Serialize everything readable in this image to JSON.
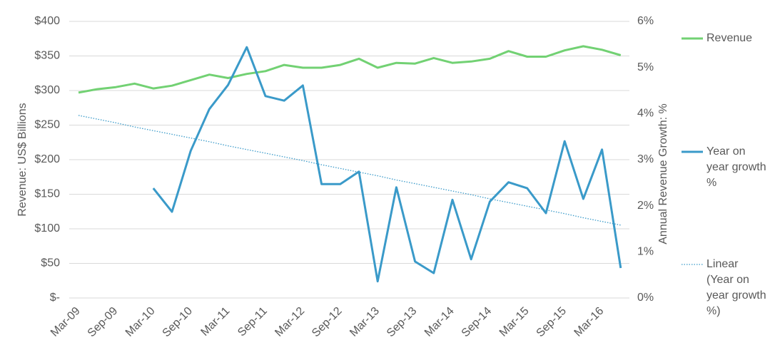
{
  "chart_data": {
    "type": "line",
    "categories": [
      "Mar-09",
      null,
      "Sep-09",
      null,
      "Mar-10",
      null,
      "Sep-10",
      null,
      "Mar-11",
      null,
      "Sep-11",
      null,
      "Mar-12",
      null,
      "Sep-12",
      null,
      "Mar-13",
      null,
      "Sep-13",
      null,
      "Mar-14",
      null,
      "Sep-14",
      null,
      "Mar-15",
      null,
      "Sep-15",
      null,
      "Mar-16",
      null
    ],
    "y_label": "Revenue: US$ Billions",
    "y2_label": "Annual Revenue Growth: %",
    "ylim": [
      0,
      400
    ],
    "yticks": [
      {
        "value": 0,
        "label": "$-"
      },
      {
        "value": 50,
        "label": "$50"
      },
      {
        "value": 100,
        "label": "$100"
      },
      {
        "value": 150,
        "label": "$150"
      },
      {
        "value": 200,
        "label": "$200"
      },
      {
        "value": 250,
        "label": "$250"
      },
      {
        "value": 300,
        "label": "$300"
      },
      {
        "value": 350,
        "label": "$350"
      },
      {
        "value": 400,
        "label": "$400"
      }
    ],
    "y2lim": [
      0,
      6
    ],
    "y2ticks": [
      {
        "value": 0,
        "label": "0%"
      },
      {
        "value": 1,
        "label": "1%"
      },
      {
        "value": 2,
        "label": "2%"
      },
      {
        "value": 3,
        "label": "3%"
      },
      {
        "value": 4,
        "label": "4%"
      },
      {
        "value": 5,
        "label": "5%"
      },
      {
        "value": 6,
        "label": "6%"
      }
    ],
    "grid": true,
    "legend": "right",
    "series": [
      {
        "name": "Revenue",
        "color": "#72d173",
        "values": [
          297,
          302,
          305,
          310,
          303,
          307,
          315,
          323,
          318,
          324,
          328,
          337,
          333,
          333,
          337,
          346,
          333,
          340,
          339,
          347,
          340,
          342,
          346,
          357,
          349,
          349,
          358,
          364,
          359,
          351
        ]
      },
      {
        "name": "Year on year growth %",
        "color": "#3a9ac9",
        "axis": "y2",
        "values": [
          null,
          null,
          null,
          null,
          2.38,
          1.87,
          3.19,
          4.1,
          4.62,
          5.44,
          4.38,
          4.28,
          4.61,
          2.47,
          2.47,
          2.74,
          0.36,
          2.4,
          0.79,
          0.54,
          2.13,
          0.84,
          2.09,
          2.51,
          2.38,
          1.84,
          3.4,
          2.15,
          3.22,
          0.65
        ]
      },
      {
        "name": "Linear (Year on year growth %)",
        "color": "#3a9ac9",
        "axis": "y2",
        "dash": "dotted",
        "values": [
          3.96,
          3.88,
          3.8,
          3.71,
          3.63,
          3.55,
          3.47,
          3.39,
          3.3,
          3.22,
          3.14,
          3.06,
          2.98,
          2.89,
          2.81,
          2.73,
          2.65,
          2.56,
          2.48,
          2.4,
          2.32,
          2.24,
          2.15,
          2.07,
          1.99,
          1.91,
          1.83,
          1.74,
          1.66,
          1.58
        ]
      }
    ]
  }
}
